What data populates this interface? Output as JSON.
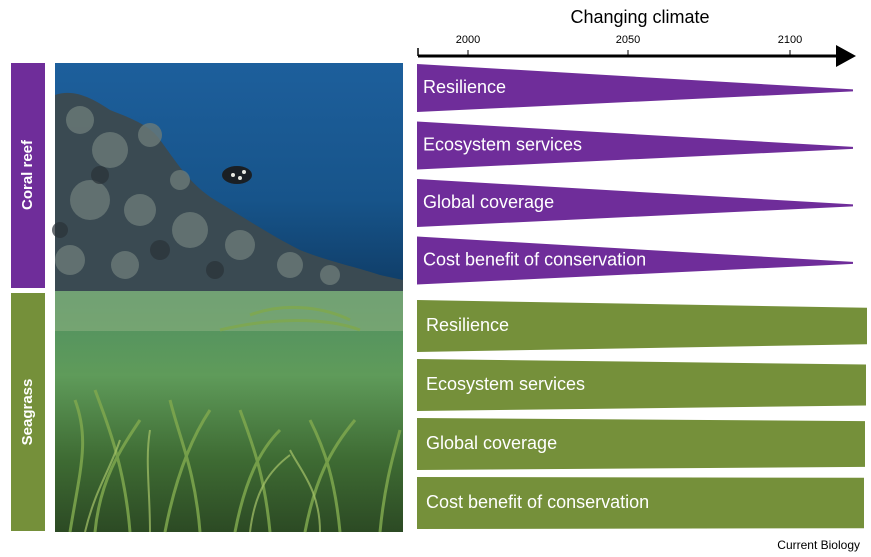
{
  "axis": {
    "title": "Changing climate",
    "ticks": [
      "2000",
      "2050",
      "2100"
    ]
  },
  "groups": [
    {
      "label": "Coral reef",
      "items": [
        "Resilience",
        "Ecosystem services",
        "Global coverage",
        "Cost benefit of conservation"
      ]
    },
    {
      "label": "Seagrass",
      "items": [
        "Resilience",
        "Ecosystem services",
        "Global coverage",
        "Cost benefit of conservation"
      ]
    }
  ],
  "footer": "Current Biology"
}
